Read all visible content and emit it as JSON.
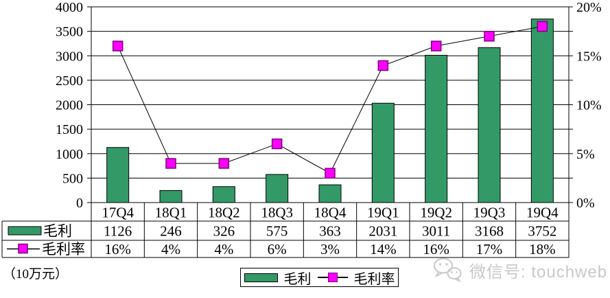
{
  "chart_data": {
    "type": "combo-bar-line",
    "title": "",
    "categories": [
      "17Q4",
      "18Q1",
      "18Q2",
      "18Q3",
      "18Q4",
      "19Q1",
      "19Q2",
      "19Q3",
      "19Q4"
    ],
    "series": [
      {
        "name": "毛利",
        "type": "bar",
        "axis": "left",
        "values": [
          1126,
          246,
          326,
          575,
          363,
          2031,
          3011,
          3168,
          3752
        ]
      },
      {
        "name": "毛利率",
        "type": "line",
        "axis": "right",
        "unit": "%",
        "values": [
          16,
          4,
          4,
          6,
          3,
          14,
          16,
          17,
          18
        ]
      }
    ],
    "y_left": {
      "min": 0,
      "max": 4000,
      "step": 500,
      "ticks": [
        "0",
        "500",
        "1000",
        "1500",
        "2000",
        "2500",
        "3000",
        "3500",
        "4000"
      ]
    },
    "y_right": {
      "min": 0,
      "max": 20,
      "step": 5,
      "labels": [
        "0%",
        "5%",
        "10%",
        "15%",
        "20%"
      ]
    },
    "grid": true,
    "legend_position": "bottom",
    "data_table": true,
    "unit_label": "（10万元）"
  },
  "legend": {
    "bar_label": "毛利",
    "line_label": "毛利率"
  },
  "watermark": {
    "text": "微信号: touchweb",
    "icon": "wechat-icon"
  },
  "colors": {
    "bar_fill": "#339966",
    "bar_border": "#000000",
    "marker_fill": "#FF00FF",
    "marker_border": "#7D007D",
    "line": "#000000",
    "grid": "#000000",
    "text": "#000000",
    "watermark": "#C8C8C8",
    "background": "#FFFFFF"
  }
}
